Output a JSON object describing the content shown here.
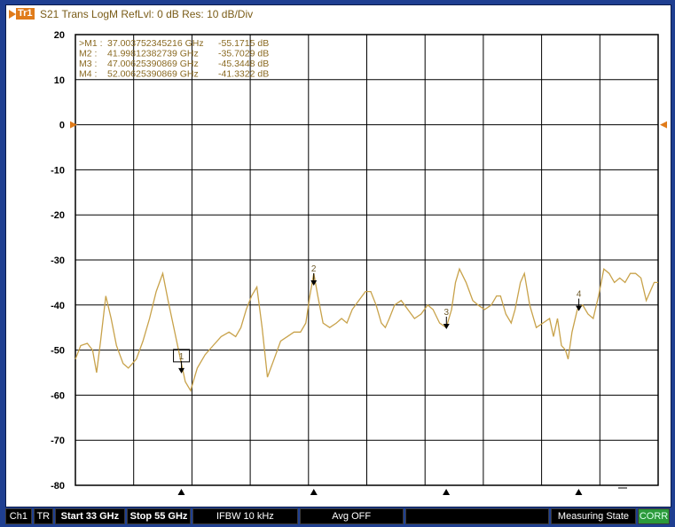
{
  "header": {
    "trace_label": "Tr1",
    "info": "S21 Trans LogM RefLvl: 0  dB Res: 10  dB/Div"
  },
  "colors": {
    "background": "#1f3f91",
    "trace": "#c8a24a",
    "marker_text": "#8a6a22",
    "accent": "#e07b1a",
    "corr": "#2b9a3a"
  },
  "y_axis": {
    "ticks": [
      "20",
      "10",
      "0",
      "-10",
      "-20",
      "-30",
      "-40",
      "-50",
      "-60",
      "-70",
      "-80"
    ]
  },
  "markers": [
    {
      "label": ">M1 :",
      "freq": "37.003752345216 GHz",
      "value": "-55.1715  dB"
    },
    {
      "label": "M2 :",
      "freq": "41.99812382739 GHz",
      "value": "-35.7029  dB"
    },
    {
      "label": "M3 :",
      "freq": "47.00625390869 GHz",
      "value": "-45.3448  dB"
    },
    {
      "label": "M4 :",
      "freq": "52.00625390869 GHz",
      "value": "-41.3322  dB"
    }
  ],
  "marker_numbers": [
    "1",
    "2",
    "3",
    "4"
  ],
  "chart_data": {
    "type": "line",
    "x_unit": "GHz",
    "y_unit": "dB",
    "xlim": [
      33,
      55
    ],
    "ylim": [
      -80,
      20
    ],
    "y_ticks": [
      20,
      10,
      0,
      -10,
      -20,
      -30,
      -40,
      -50,
      -60,
      -70,
      -80
    ],
    "grid": true,
    "reference_level": 0,
    "series": [
      {
        "points": [
          [
            33.0,
            -52
          ],
          [
            33.2,
            -49
          ],
          [
            33.45,
            -48.5
          ],
          [
            33.65,
            -50
          ],
          [
            33.8,
            -55
          ],
          [
            33.95,
            -48
          ],
          [
            34.15,
            -38
          ],
          [
            34.35,
            -43
          ],
          [
            34.55,
            -49
          ],
          [
            34.8,
            -53
          ],
          [
            35.0,
            -54
          ],
          [
            35.3,
            -52
          ],
          [
            35.55,
            -48
          ],
          [
            35.8,
            -43
          ],
          [
            36.05,
            -37
          ],
          [
            36.3,
            -33
          ],
          [
            36.5,
            -39
          ],
          [
            36.75,
            -46
          ],
          [
            37.0,
            -53
          ],
          [
            37.15,
            -57
          ],
          [
            37.35,
            -59
          ],
          [
            37.6,
            -54
          ],
          [
            37.9,
            -51
          ],
          [
            38.2,
            -49
          ],
          [
            38.5,
            -47
          ],
          [
            38.8,
            -46
          ],
          [
            39.05,
            -47
          ],
          [
            39.25,
            -45
          ],
          [
            39.45,
            -41
          ],
          [
            39.65,
            -38
          ],
          [
            39.85,
            -36
          ],
          [
            40.05,
            -45
          ],
          [
            40.25,
            -56
          ],
          [
            40.5,
            -52
          ],
          [
            40.75,
            -48
          ],
          [
            41.0,
            -47
          ],
          [
            41.25,
            -46
          ],
          [
            41.5,
            -46
          ],
          [
            41.7,
            -44
          ],
          [
            41.85,
            -38
          ],
          [
            42.0,
            -33
          ],
          [
            42.15,
            -38
          ],
          [
            42.35,
            -44
          ],
          [
            42.6,
            -45
          ],
          [
            42.85,
            -44
          ],
          [
            43.05,
            -43
          ],
          [
            43.25,
            -44
          ],
          [
            43.45,
            -41
          ],
          [
            43.7,
            -39
          ],
          [
            43.95,
            -37
          ],
          [
            44.15,
            -37
          ],
          [
            44.35,
            -40
          ],
          [
            44.55,
            -44
          ],
          [
            44.7,
            -45
          ],
          [
            44.85,
            -43
          ],
          [
            45.05,
            -40
          ],
          [
            45.3,
            -39
          ],
          [
            45.55,
            -41
          ],
          [
            45.8,
            -43
          ],
          [
            46.05,
            -42
          ],
          [
            46.3,
            -40
          ],
          [
            46.5,
            -41
          ],
          [
            46.75,
            -44
          ],
          [
            47.0,
            -45
          ],
          [
            47.2,
            -41
          ],
          [
            47.35,
            -35
          ],
          [
            47.5,
            -32
          ],
          [
            47.75,
            -35
          ],
          [
            48.0,
            -39
          ],
          [
            48.2,
            -40
          ],
          [
            48.45,
            -41
          ],
          [
            48.7,
            -40
          ],
          [
            48.9,
            -38
          ],
          [
            49.05,
            -38
          ],
          [
            49.25,
            -42
          ],
          [
            49.45,
            -44
          ],
          [
            49.6,
            -41
          ],
          [
            49.8,
            -35
          ],
          [
            49.95,
            -33
          ],
          [
            50.15,
            -40
          ],
          [
            50.4,
            -45
          ],
          [
            50.65,
            -44
          ],
          [
            50.9,
            -43
          ],
          [
            51.05,
            -47
          ],
          [
            51.2,
            -43
          ],
          [
            51.35,
            -49
          ],
          [
            51.5,
            -50
          ],
          [
            51.6,
            -52
          ],
          [
            51.75,
            -46
          ],
          [
            51.95,
            -41
          ],
          [
            52.15,
            -40
          ],
          [
            52.35,
            -42
          ],
          [
            52.55,
            -43
          ],
          [
            52.75,
            -38
          ],
          [
            52.95,
            -32
          ],
          [
            53.15,
            -33
          ],
          [
            53.35,
            -35
          ],
          [
            53.55,
            -34
          ],
          [
            53.75,
            -35
          ],
          [
            53.95,
            -33
          ],
          [
            54.15,
            -33
          ],
          [
            54.35,
            -34
          ],
          [
            54.55,
            -39
          ],
          [
            54.7,
            -37
          ],
          [
            54.85,
            -35
          ],
          [
            55.0,
            -35
          ]
        ]
      }
    ],
    "markers": [
      {
        "id": "1",
        "x": 37.0038,
        "y": -55.1715,
        "active": true
      },
      {
        "id": "2",
        "x": 41.9981,
        "y": -35.7029
      },
      {
        "id": "3",
        "x": 47.0063,
        "y": -45.3448
      },
      {
        "id": "4",
        "x": 52.0063,
        "y": -41.3322
      }
    ],
    "bottom_triangles_x": [
      37.0,
      42.0,
      47.0,
      52.0
    ]
  },
  "statusbar": {
    "channel": "Ch1",
    "mode": "TR",
    "start": "Start 33 GHz",
    "stop": "Stop 55 GHz",
    "ifbw": "IFBW 10 kHz",
    "avg": "Avg OFF",
    "blank": "",
    "state": "Measuring State",
    "corr": "CORR"
  }
}
